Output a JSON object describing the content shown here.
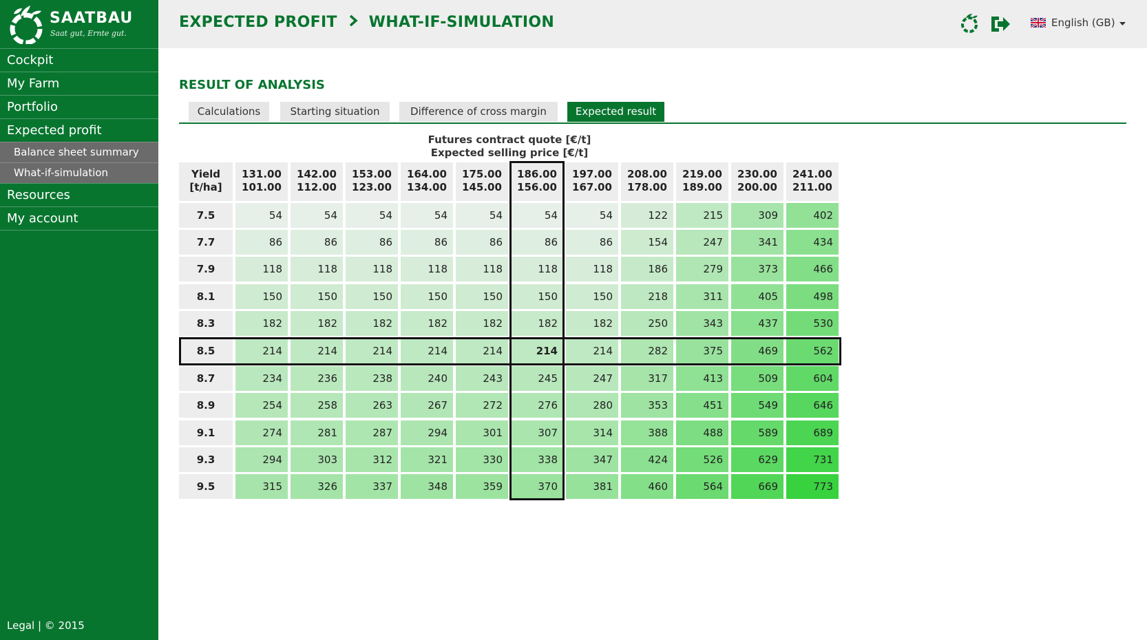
{
  "brand": {
    "name": "SAATBAU",
    "slogan": "Saat gut, Ernte gut."
  },
  "sidebar": {
    "items": [
      {
        "label": "Cockpit"
      },
      {
        "label": "My Farm"
      },
      {
        "label": "Portfolio"
      },
      {
        "label": "Expected profit"
      }
    ],
    "sub_items": [
      {
        "label": "Balance sheet summary"
      },
      {
        "label": "What-if-simulation"
      }
    ],
    "items_after": [
      {
        "label": "Resources"
      },
      {
        "label": "My account"
      }
    ],
    "footer": "Legal | © 2015"
  },
  "header": {
    "breadcrumb_1": "EXPECTED PROFIT",
    "breadcrumb_2": "WHAT-IF-SIMULATION",
    "language": "English (GB)",
    "icons": [
      "saatbau-logo-icon",
      "logout-icon",
      "uk-flag-icon",
      "caret-down-icon"
    ]
  },
  "main": {
    "section_title": "RESULT OF ANALYSIS",
    "tabs": [
      {
        "label": "Calculations"
      },
      {
        "label": "Starting situation"
      },
      {
        "label": "Difference of cross margin"
      },
      {
        "label": "Expected result"
      }
    ],
    "active_tab": 3,
    "axis_caption_1": "Futures contract quote [€/t]",
    "axis_caption_2": "Expected selling price [€/t]",
    "corner_1": "Yield",
    "corner_2": "[t/ha]"
  },
  "table": {
    "columns": [
      {
        "futures": "131.00",
        "price": "101.00"
      },
      {
        "futures": "142.00",
        "price": "112.00"
      },
      {
        "futures": "153.00",
        "price": "123.00"
      },
      {
        "futures": "164.00",
        "price": "134.00"
      },
      {
        "futures": "175.00",
        "price": "145.00"
      },
      {
        "futures": "186.00",
        "price": "156.00"
      },
      {
        "futures": "197.00",
        "price": "167.00"
      },
      {
        "futures": "208.00",
        "price": "178.00"
      },
      {
        "futures": "219.00",
        "price": "189.00"
      },
      {
        "futures": "230.00",
        "price": "200.00"
      },
      {
        "futures": "241.00",
        "price": "211.00"
      }
    ],
    "rows": [
      {
        "yield": "7.5",
        "values": [
          "54",
          "54",
          "54",
          "54",
          "54",
          "54",
          "54",
          "122",
          "215",
          "309",
          "402"
        ]
      },
      {
        "yield": "7.7",
        "values": [
          "86",
          "86",
          "86",
          "86",
          "86",
          "86",
          "86",
          "154",
          "247",
          "341",
          "434"
        ]
      },
      {
        "yield": "7.9",
        "values": [
          "118",
          "118",
          "118",
          "118",
          "118",
          "118",
          "118",
          "186",
          "279",
          "373",
          "466"
        ]
      },
      {
        "yield": "8.1",
        "values": [
          "150",
          "150",
          "150",
          "150",
          "150",
          "150",
          "150",
          "218",
          "311",
          "405",
          "498"
        ]
      },
      {
        "yield": "8.3",
        "values": [
          "182",
          "182",
          "182",
          "182",
          "182",
          "182",
          "182",
          "250",
          "343",
          "437",
          "530"
        ]
      },
      {
        "yield": "8.5",
        "values": [
          "214",
          "214",
          "214",
          "214",
          "214",
          "214",
          "214",
          "282",
          "375",
          "469",
          "562"
        ]
      },
      {
        "yield": "8.7",
        "values": [
          "234",
          "236",
          "238",
          "240",
          "243",
          "245",
          "247",
          "317",
          "413",
          "509",
          "604"
        ]
      },
      {
        "yield": "8.9",
        "values": [
          "254",
          "258",
          "263",
          "267",
          "272",
          "276",
          "280",
          "353",
          "451",
          "549",
          "646"
        ]
      },
      {
        "yield": "9.1",
        "values": [
          "274",
          "281",
          "287",
          "294",
          "301",
          "307",
          "314",
          "388",
          "488",
          "589",
          "689"
        ]
      },
      {
        "yield": "9.3",
        "values": [
          "294",
          "303",
          "312",
          "321",
          "330",
          "338",
          "347",
          "424",
          "526",
          "629",
          "731"
        ]
      },
      {
        "yield": "9.5",
        "values": [
          "315",
          "326",
          "337",
          "348",
          "359",
          "370",
          "381",
          "460",
          "564",
          "669",
          "773"
        ]
      }
    ],
    "highlight_row": 5,
    "highlight_col": 5,
    "colors": {
      "low": "#e6efe8",
      "high": "#38d23f",
      "header": "#ededed"
    }
  }
}
